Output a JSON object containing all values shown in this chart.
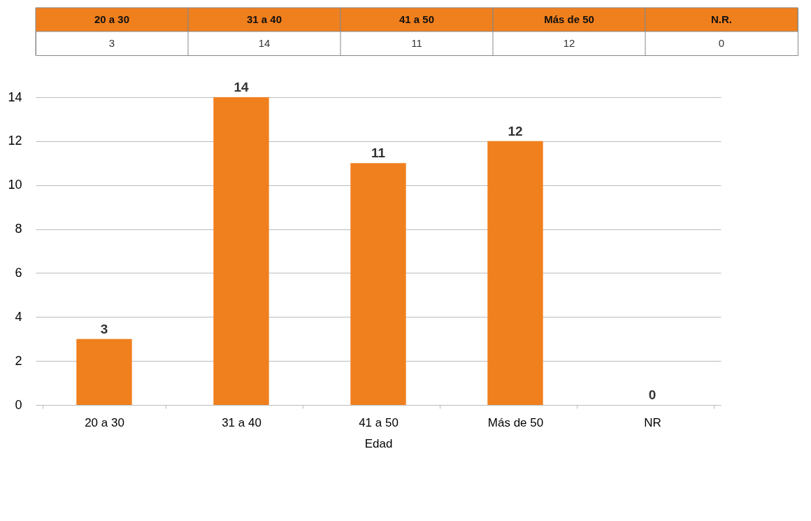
{
  "chart_data": [
    {
      "type": "other",
      "categories": [
        "20 a 30",
        "31 a 40",
        "41 a 50",
        "Más de 50",
        "N.R."
      ],
      "values": [
        3,
        14,
        11,
        12,
        0
      ],
      "color": "#f07f1e",
      "data_labels": true
    },
    {
      "type": "bar",
      "xlabel": "Edad",
      "categories": [
        "20 a 30",
        "31 a 40",
        "41 a 50",
        "Más de 50",
        "NR"
      ],
      "values": [
        3,
        14,
        11,
        12,
        0
      ],
      "color": "#f07f1e",
      "ylim": [
        0,
        14
      ],
      "yticks": [
        0,
        2,
        4,
        6,
        8,
        10,
        12,
        14
      ],
      "grid": "y",
      "data_labels": true
    }
  ]
}
